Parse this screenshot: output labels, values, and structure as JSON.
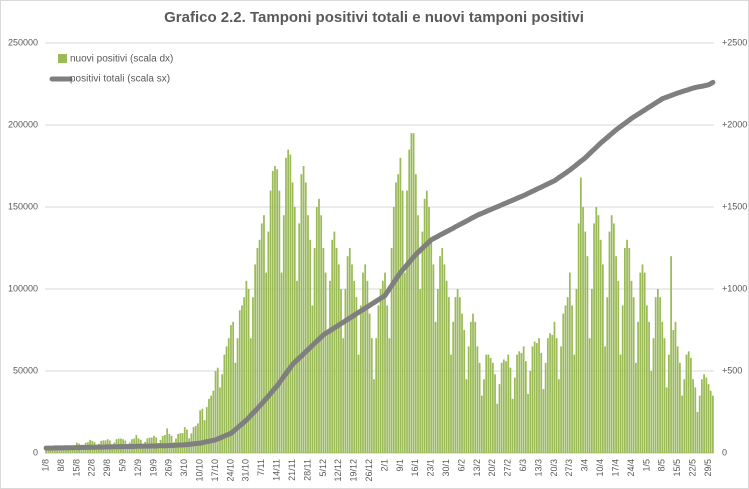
{
  "chart_data": {
    "type": "combo",
    "title": "Grafico 2.2. Tamponi positivi totali e nuovi tamponi positivi",
    "categories": [
      "1/8",
      null,
      null,
      null,
      null,
      null,
      null,
      "8/8",
      null,
      null,
      null,
      null,
      null,
      null,
      "15/8",
      null,
      null,
      null,
      null,
      null,
      null,
      "22/8",
      null,
      null,
      null,
      null,
      null,
      null,
      "29/8",
      null,
      null,
      null,
      null,
      null,
      null,
      "5/9",
      null,
      null,
      null,
      null,
      null,
      null,
      "12/9",
      null,
      null,
      null,
      null,
      null,
      null,
      "19/9",
      null,
      null,
      null,
      null,
      null,
      null,
      "26/9",
      null,
      null,
      null,
      null,
      null,
      null,
      "3/10",
      null,
      null,
      null,
      null,
      null,
      null,
      "10/10",
      null,
      null,
      null,
      null,
      null,
      null,
      "17/10",
      null,
      null,
      null,
      null,
      null,
      null,
      "24/10",
      null,
      null,
      null,
      null,
      null,
      null,
      "31/10",
      null,
      null,
      null,
      null,
      null,
      null,
      "7/11",
      null,
      null,
      null,
      null,
      null,
      null,
      "14/11",
      null,
      null,
      null,
      null,
      null,
      null,
      "21/11",
      null,
      null,
      null,
      null,
      null,
      null,
      "28/11",
      null,
      null,
      null,
      null,
      null,
      null,
      "5/12",
      null,
      null,
      null,
      null,
      null,
      null,
      "12/12",
      null,
      null,
      null,
      null,
      null,
      null,
      "19/12",
      null,
      null,
      null,
      null,
      null,
      null,
      "26/12",
      null,
      null,
      null,
      null,
      null,
      null,
      "2/1",
      null,
      null,
      null,
      null,
      null,
      null,
      "9/1",
      null,
      null,
      null,
      null,
      null,
      null,
      "16/1",
      null,
      null,
      null,
      null,
      null,
      null,
      "23/1",
      null,
      null,
      null,
      null,
      null,
      null,
      "30/1",
      null,
      null,
      null,
      null,
      null,
      null,
      "6/2",
      null,
      null,
      null,
      null,
      null,
      null,
      "13/2",
      null,
      null,
      null,
      null,
      null,
      null,
      "20/2",
      null,
      null,
      null,
      null,
      null,
      null,
      "27/2",
      null,
      null,
      null,
      null,
      null,
      null,
      "6/3",
      null,
      null,
      null,
      null,
      null,
      null,
      "13/3",
      null,
      null,
      null,
      null,
      null,
      null,
      "20/3",
      null,
      null,
      null,
      null,
      null,
      null,
      "27/3",
      null,
      null,
      null,
      null,
      null,
      null,
      "3/4",
      null,
      null,
      null,
      null,
      null,
      null,
      "10/4",
      null,
      null,
      null,
      null,
      null,
      null,
      "17/4",
      null,
      null,
      null,
      null,
      null,
      null,
      "24/4",
      null,
      null,
      null,
      null,
      null,
      null,
      "1/5",
      null,
      null,
      null,
      null,
      null,
      null,
      "8/5",
      null,
      null,
      null,
      null,
      null,
      null,
      "15/5",
      null,
      null,
      null,
      null,
      null,
      null,
      "22/5",
      null,
      null,
      null,
      null,
      null,
      null,
      "29/5",
      null,
      null
    ],
    "series": [
      {
        "name": "nuovi positivi (scala dx)",
        "type": "bar",
        "axis": "y2",
        "color": "#9bbb59",
        "values": [
          32,
          28,
          18,
          24,
          32,
          33,
          33,
          42,
          38,
          24,
          32,
          42,
          44,
          44,
          63,
          57,
          36,
          48,
          63,
          66,
          80,
          74,
          66,
          42,
          56,
          74,
          77,
          77,
          84,
          76,
          48,
          64,
          84,
          88,
          88,
          84,
          76,
          48,
          64,
          84,
          88,
          110,
          89,
          81,
          51,
          68,
          89,
          94,
          94,
          105,
          95,
          60,
          80,
          105,
          110,
          150,
          116,
          105,
          66,
          88,
          116,
          121,
          121,
          158,
          143,
          90,
          120,
          158,
          165,
          180,
          260,
          270,
          200,
          280,
          330,
          350,
          380,
          500,
          520,
          400,
          480,
          600,
          650,
          700,
          780,
          800,
          550,
          700,
          870,
          900,
          950,
          1050,
          1000,
          700,
          950,
          1150,
          1250,
          1300,
          1400,
          1450,
          1100,
          1350,
          1600,
          1720,
          1750,
          1730,
          1600,
          1100,
          1450,
          1800,
          1850,
          1820,
          1650,
          1500,
          1050,
          1400,
          1700,
          1750,
          1650,
          1450,
          1300,
          900,
          1250,
          1500,
          1550,
          1450,
          1250,
          1100,
          750,
          1050,
          1300,
          1350,
          1250,
          1150,
          1000,
          700,
          1000,
          1200,
          1250,
          1150,
          1050,
          950,
          600,
          900,
          1100,
          1150,
          1050,
          850,
          700,
          450,
          700,
          900,
          1000,
          1050,
          1100,
          900,
          700,
          1250,
          1500,
          1650,
          1700,
          1800,
          1600,
          1100,
          1600,
          1850,
          1950,
          1950,
          1700,
          1450,
          1000,
          1350,
          1550,
          1600,
          1500,
          1300,
          1150,
          800,
          1000,
          1200,
          1250,
          1150,
          1050,
          950,
          600,
          800,
          950,
          1000,
          950,
          850,
          750,
          450,
          650,
          800,
          850,
          800,
          650,
          550,
          350,
          450,
          600,
          600,
          580,
          550,
          480,
          300,
          420,
          550,
          570,
          560,
          600,
          520,
          330,
          460,
          600,
          620,
          610,
          650,
          560,
          360,
          500,
          650,
          680,
          670,
          700,
          610,
          390,
          550,
          700,
          730,
          720,
          800,
          700,
          450,
          650,
          850,
          900,
          950,
          1100,
          900,
          600,
          1000,
          1400,
          1680,
          1500,
          1350,
          1200,
          700,
          1000,
          1400,
          1500,
          1450,
          1300,
          1150,
          650,
          950,
          1350,
          1450,
          1400,
          1200,
          1050,
          600,
          900,
          1250,
          1300,
          1250,
          1050,
          950,
          550,
          800,
          1100,
          1150,
          1100,
          900,
          800,
          500,
          700,
          950,
          1000,
          950,
          800,
          700,
          400,
          600,
          1200,
          750,
          800,
          650,
          550,
          350,
          450,
          600,
          620,
          580,
          450,
          400,
          250,
          350,
          450,
          480,
          460,
          420,
          380,
          350
        ]
      },
      {
        "name": "positivi totali (scala sx)",
        "type": "line",
        "color": "#7f7f7f",
        "values": [
          3000,
          3000,
          3000,
          3000,
          3100,
          3100,
          3100,
          3100,
          3100,
          3200,
          3200,
          3200,
          3200,
          3300,
          3300,
          3300,
          3400,
          3400,
          3400,
          3400,
          3500,
          3500,
          3500,
          3600,
          3600,
          3600,
          3600,
          3700,
          3700,
          3700,
          3800,
          3800,
          3800,
          3800,
          3900,
          3900,
          3900,
          4000,
          4000,
          4000,
          4000,
          4100,
          4100,
          4100,
          4200,
          4200,
          4200,
          4200,
          4300,
          4300,
          4300,
          4400,
          4400,
          4400,
          4400,
          4500,
          4500,
          4600,
          4600,
          4700,
          4800,
          4900,
          4900,
          5000,
          5100,
          5300,
          5400,
          5600,
          5700,
          5900,
          6000,
          6300,
          6600,
          6900,
          7100,
          7400,
          7700,
          8000,
          8600,
          9100,
          9700,
          10300,
          10900,
          11400,
          12000,
          13100,
          14300,
          15400,
          16600,
          17700,
          18900,
          20000,
          21400,
          22900,
          24300,
          25700,
          27100,
          28600,
          30000,
          31600,
          33100,
          34700,
          36300,
          37900,
          39400,
          41000,
          42900,
          44700,
          46600,
          48400,
          50300,
          52100,
          54000,
          55300,
          56600,
          57900,
          59100,
          60400,
          61700,
          63000,
          64300,
          65600,
          66900,
          68100,
          69400,
          70700,
          72000,
          72900,
          73700,
          74600,
          75400,
          76300,
          77100,
          78000,
          78900,
          79700,
          80600,
          81400,
          82300,
          83100,
          84000,
          84900,
          85700,
          86600,
          87400,
          88300,
          89100,
          90000,
          90900,
          91700,
          92600,
          93400,
          94300,
          95100,
          96000,
          98000,
          100000,
          102000,
          104000,
          106000,
          108000,
          110000,
          111600,
          113100,
          114700,
          116300,
          117900,
          119400,
          121000,
          122300,
          123600,
          124900,
          126100,
          127400,
          128700,
          130000,
          130700,
          131400,
          132100,
          132900,
          133600,
          134300,
          135000,
          135700,
          136400,
          137100,
          137900,
          138600,
          139300,
          140000,
          140700,
          141400,
          142100,
          142900,
          143600,
          144300,
          145000,
          145600,
          146100,
          146700,
          147300,
          147900,
          148400,
          149000,
          149600,
          150100,
          150700,
          151300,
          151900,
          152400,
          153000,
          153600,
          154100,
          154700,
          155300,
          155900,
          156400,
          157000,
          157600,
          158300,
          158900,
          159600,
          160200,
          160900,
          161500,
          162100,
          162800,
          163400,
          164100,
          164700,
          165400,
          166000,
          166900,
          167900,
          168800,
          169700,
          170600,
          171600,
          172500,
          173600,
          174600,
          175700,
          176800,
          177900,
          178900,
          180000,
          181300,
          182600,
          183900,
          185100,
          186400,
          187700,
          189000,
          190100,
          191300,
          192400,
          193600,
          194700,
          195900,
          197000,
          198000,
          199000,
          200000,
          201000,
          202000,
          203000,
          204000,
          204900,
          205700,
          206600,
          207400,
          208300,
          209100,
          210000,
          210900,
          211700,
          212600,
          213400,
          214300,
          215100,
          216000,
          216500,
          217000,
          217500,
          218000,
          218500,
          219000,
          219500,
          219900,
          220400,
          220800,
          221200,
          221600,
          222100,
          222500,
          222800,
          223100,
          223400,
          223600,
          223900,
          224200,
          224500,
          225200,
          226000
        ]
      }
    ],
    "ylim": [
      0,
      250000
    ],
    "yticks": [
      0,
      50000,
      100000,
      150000,
      200000,
      250000
    ],
    "y2lim": [
      0,
      2500
    ],
    "y2ticks": [
      0,
      {
        "value": 500,
        "label": "+500"
      },
      {
        "value": 1000,
        "label": "+1000"
      },
      {
        "value": 1500,
        "label": "+1500"
      },
      {
        "value": 2000,
        "label": "+2000"
      },
      {
        "value": 2500,
        "label": "+2500"
      }
    ],
    "grid": true,
    "legend": "top-left"
  }
}
